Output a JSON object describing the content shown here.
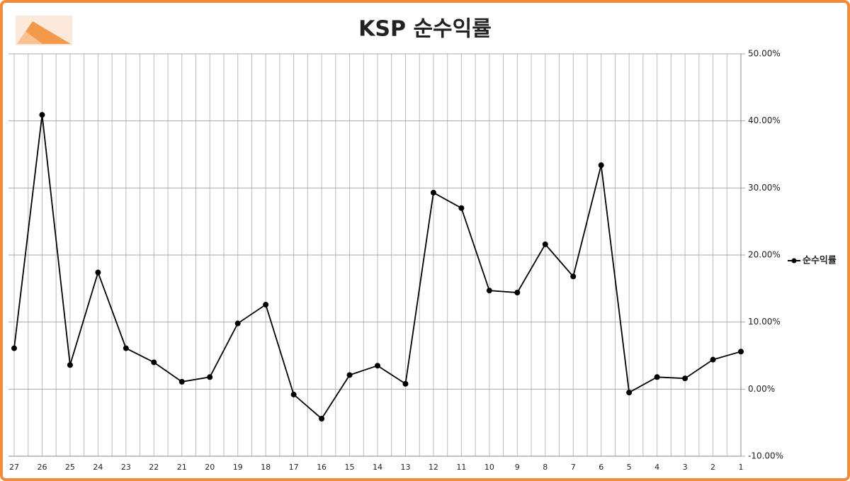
{
  "chart_data": {
    "type": "line",
    "title": "KSP 순수익률",
    "categories": [
      "27",
      "26",
      "25",
      "24",
      "23",
      "22",
      "21",
      "20",
      "19",
      "18",
      "17",
      "16",
      "15",
      "14",
      "13",
      "12",
      "11",
      "10",
      "9",
      "8",
      "7",
      "6",
      "5",
      "4",
      "3",
      "2",
      "1"
    ],
    "series": [
      {
        "name": "순수익률",
        "color": "#000000",
        "values": [
          6.1,
          40.9,
          3.6,
          17.4,
          6.1,
          4.0,
          1.1,
          1.8,
          9.8,
          12.6,
          -0.8,
          -4.4,
          2.1,
          3.5,
          0.8,
          29.3,
          27.0,
          14.7,
          14.4,
          21.6,
          16.8,
          33.4,
          -0.5,
          1.8,
          1.6,
          4.4,
          5.6
        ]
      }
    ],
    "ylim": [
      -10,
      50
    ],
    "yticks": [
      {
        "value": 50,
        "label": "50.00%"
      },
      {
        "value": 40,
        "label": "40.00%"
      },
      {
        "value": 30,
        "label": "30.00%"
      },
      {
        "value": 20,
        "label": "20.00%"
      },
      {
        "value": 10,
        "label": "10.00%"
      },
      {
        "value": 0,
        "label": "0.00%"
      },
      {
        "value": -10,
        "label": "-10.00%"
      }
    ],
    "grid": true,
    "legend": "right"
  }
}
